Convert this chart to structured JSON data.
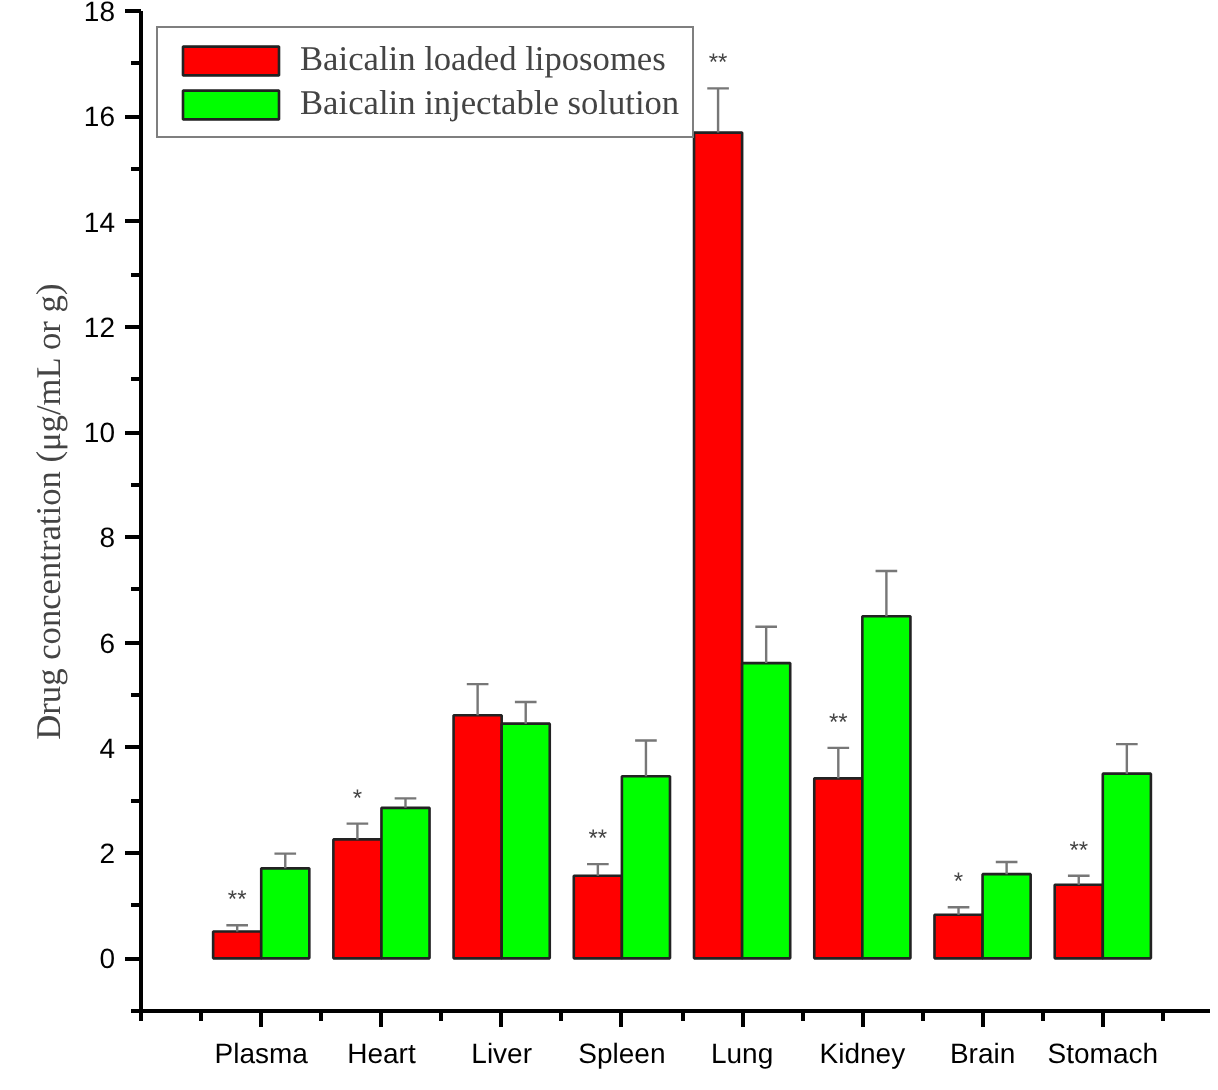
{
  "chart_data": {
    "type": "bar",
    "ylabel": "Drug concentration (μg/mL or g)",
    "categories": [
      "Plasma",
      "Heart",
      "Liver",
      "Spleen",
      "Lung",
      "Kidney",
      "Brain",
      "Stomach"
    ],
    "series": [
      {
        "name": "Baicalin loaded liposomes",
        "color": "#ff0000",
        "values": [
          0.51,
          2.26,
          4.62,
          1.57,
          15.69,
          3.42,
          0.83,
          1.4
        ],
        "errors": [
          [
            0.51,
            0.63
          ],
          [
            2.26,
            2.56
          ],
          [
            4.62,
            5.21
          ],
          [
            1.57,
            1.79
          ],
          [
            15.69,
            16.53
          ],
          [
            3.42,
            4.0
          ],
          [
            0.83,
            0.97
          ],
          [
            1.4,
            1.57
          ]
        ]
      },
      {
        "name": "Baicalin injectable solution",
        "color": "#00ff00",
        "values": [
          1.71,
          2.86,
          4.46,
          3.46,
          5.61,
          6.5,
          1.6,
          3.51
        ],
        "errors": [
          [
            1.71,
            1.99
          ],
          [
            2.86,
            3.04
          ],
          [
            4.46,
            4.87
          ],
          [
            3.46,
            4.14
          ],
          [
            5.61,
            6.3
          ],
          [
            6.5,
            7.36
          ],
          [
            1.6,
            1.83
          ],
          [
            3.51,
            4.07
          ]
        ]
      }
    ],
    "ylim": [
      -1,
      18
    ],
    "yticks": [
      0,
      2,
      4,
      6,
      8,
      10,
      12,
      14,
      16,
      18
    ],
    "annotations": [
      {
        "text": "**",
        "x": "Plasma",
        "y": 0.51
      },
      {
        "text": "*",
        "x": "Heart",
        "y": 2.26
      },
      {
        "text": "**",
        "x": "Spleen",
        "y": 1.57
      },
      {
        "text": "**",
        "x": "Lung",
        "y": 15.69
      },
      {
        "text": "**",
        "x": "Kidney",
        "y": 3.42
      },
      {
        "text": "*",
        "x": "Brain",
        "y": 0.83
      },
      {
        "text": "**",
        "x": "Stomach",
        "y": 1.4
      }
    ],
    "legend": "top left"
  }
}
